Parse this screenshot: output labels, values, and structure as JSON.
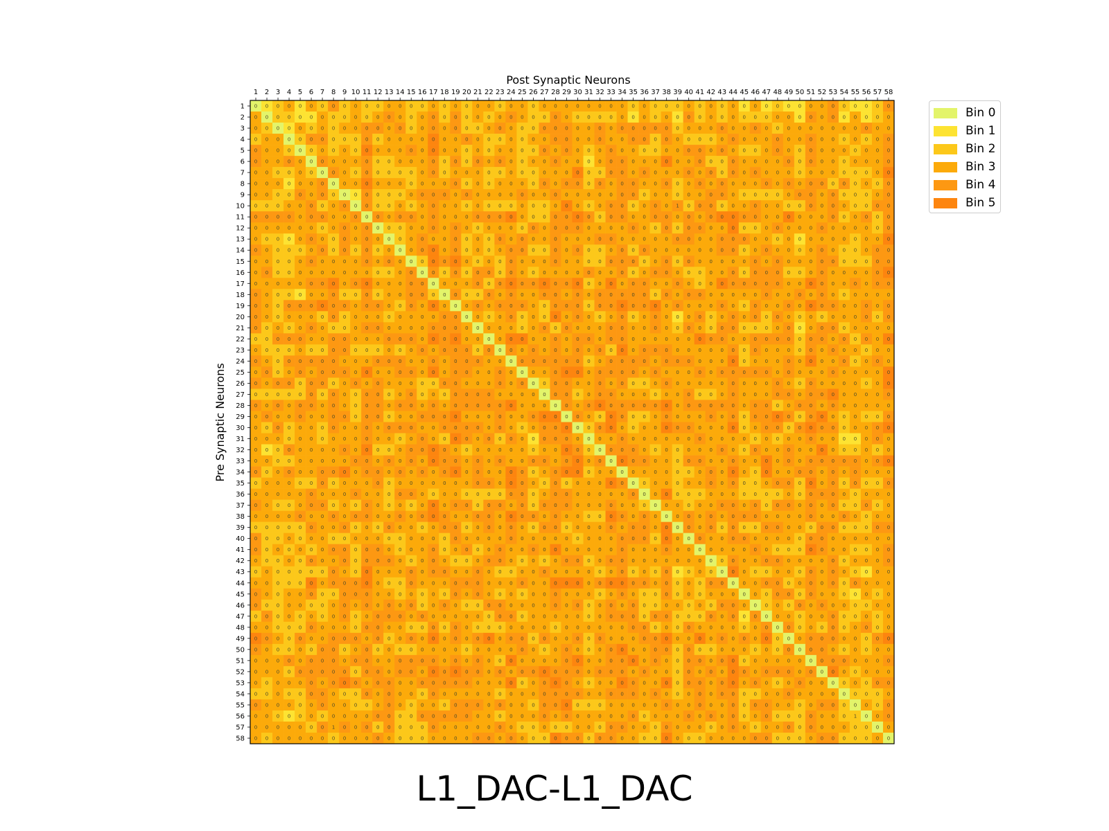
{
  "figure": {
    "caption": "L1_DAC-L1_DAC"
  },
  "chart_data": {
    "type": "heatmap",
    "title": "Post Synaptic Neurons",
    "xlabel": "Post Synaptic Neurons",
    "ylabel": "Pre Synaptic Neurons",
    "x_ticks": [
      "1",
      "2",
      "3",
      "4",
      "5",
      "6",
      "7",
      "8",
      "9",
      "10",
      "11",
      "12",
      "13",
      "14",
      "15",
      "16",
      "17",
      "18",
      "19",
      "20",
      "21",
      "22",
      "23",
      "24",
      "25",
      "26",
      "27",
      "28",
      "29",
      "30",
      "31",
      "32",
      "33",
      "34",
      "35",
      "36",
      "37",
      "38",
      "39",
      "40",
      "41",
      "42",
      "43",
      "44",
      "45",
      "46",
      "47",
      "48",
      "49",
      "50",
      "51",
      "52",
      "53",
      "54",
      "55",
      "56",
      "57",
      "58"
    ],
    "y_ticks": [
      "1",
      "2",
      "3",
      "4",
      "5",
      "6",
      "7",
      "8",
      "9",
      "10",
      "11",
      "12",
      "13",
      "14",
      "15",
      "16",
      "17",
      "18",
      "19",
      "20",
      "21",
      "22",
      "23",
      "24",
      "25",
      "26",
      "27",
      "28",
      "29",
      "30",
      "31",
      "32",
      "33",
      "34",
      "35",
      "36",
      "37",
      "38",
      "39",
      "40",
      "41",
      "42",
      "43",
      "44",
      "45",
      "46",
      "47",
      "48",
      "49",
      "50",
      "51",
      "52",
      "53",
      "54",
      "55",
      "56",
      "57",
      "58"
    ],
    "x_axis_position": "top",
    "legend_position": "upper-right-outside",
    "color_scale": "yellow-orange bins",
    "legend": [
      {
        "label": "Bin 0",
        "color": "#e3f46a"
      },
      {
        "label": "Bin 1",
        "color": "#fde332"
      },
      {
        "label": "Bin 2",
        "color": "#fcc81a"
      },
      {
        "label": "Bin 3",
        "color": "#fcaa0a"
      },
      {
        "label": "Bin 4",
        "color": "#fd9812"
      },
      {
        "label": "Bin 5",
        "color": "#fd850f"
      }
    ],
    "cell_labels": {
      "default": "0",
      "exceptions": [
        {
          "row": 10,
          "col": 39,
          "label": "1"
        },
        {
          "row": 56,
          "col": 55,
          "label": "1"
        },
        {
          "row": 57,
          "col": 8,
          "label": "1"
        }
      ]
    },
    "matrix_note": "58x58 matrix; diagonal cells are Bin 0; off-diagonal bins (0-5) approximated from image",
    "diagonal_bin": 0,
    "column_bias": [
      3,
      2,
      2,
      2,
      2,
      3,
      3,
      3,
      3,
      2,
      4,
      3,
      3,
      3,
      3,
      3,
      4,
      3,
      4,
      3,
      3,
      3,
      3,
      4,
      3,
      2,
      3,
      4,
      4,
      4,
      2,
      3,
      4,
      4,
      3,
      3,
      3,
      4,
      2,
      3,
      3,
      3,
      3,
      4,
      2,
      3,
      3,
      3,
      3,
      2,
      4,
      4,
      4,
      2,
      2,
      2,
      3,
      4
    ],
    "row_bias": [
      1,
      1,
      2,
      2,
      2,
      2,
      2,
      2,
      2,
      2,
      3,
      2,
      2,
      2,
      2,
      2,
      3,
      2,
      3,
      2,
      2,
      3,
      2,
      3,
      3,
      2,
      2,
      3,
      3,
      3,
      2,
      2,
      3,
      3,
      2,
      2,
      2,
      3,
      2,
      2,
      2,
      2,
      2,
      3,
      2,
      2,
      2,
      2,
      3,
      2,
      3,
      3,
      3,
      2,
      2,
      2,
      2,
      2
    ]
  }
}
